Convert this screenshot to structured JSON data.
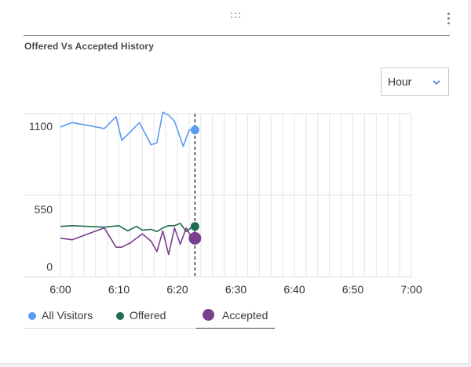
{
  "widget": {
    "title": "Offered Vs Accepted History",
    "drag_icon": "drag-grip-icon",
    "menu_icon": "more-vertical-icon"
  },
  "range_select": {
    "selected": "Hour",
    "icon": "chevron-down-icon",
    "accent": "#4a7fe0"
  },
  "legend": {
    "items": [
      {
        "label": "All Visitors",
        "color": "#5b9bf0"
      },
      {
        "label": "Offered",
        "color": "#1e6b4f"
      },
      {
        "label": "Accepted",
        "color": "#7b3f8f"
      }
    ],
    "active_index": 2
  },
  "chart_data": {
    "type": "line",
    "x_ticks": [
      "6:00",
      "6:10",
      "6:20",
      "6:30",
      "6:40",
      "6:50",
      "7:00"
    ],
    "y_ticks": [
      "1100",
      "550",
      "0"
    ],
    "xlim": [
      "6:00",
      "7:00"
    ],
    "ylim": [
      0,
      1100
    ],
    "grid": true,
    "current_time": "6:23",
    "series": [
      {
        "name": "All Visitors",
        "color": "#5b9bf0",
        "x": [
          "6:00",
          "6:02",
          "6:07.5",
          "6:09.5",
          "6:10.5",
          "6:11.5",
          "6:13.5",
          "6:15.5",
          "6:16.5",
          "6:17.5",
          "6:18.5",
          "6:19.5",
          "6:21",
          "6:22",
          "6:23"
        ],
        "values": [
          1010,
          1040,
          1000,
          1080,
          920,
          960,
          1040,
          890,
          905,
          1110,
          1090,
          1050,
          880,
          990,
          990
        ]
      },
      {
        "name": "Offered",
        "color": "#1e6b4f",
        "x": [
          "6:00",
          "6:02",
          "6:07.5",
          "6:10",
          "6:11.5",
          "6:13",
          "6:14",
          "6:15.5",
          "6:16.5",
          "6:17.5",
          "6:18.5",
          "6:19.5",
          "6:20.5",
          "6:21.5",
          "6:22.5",
          "6:23"
        ],
        "values": [
          340,
          345,
          335,
          345,
          310,
          340,
          315,
          320,
          305,
          330,
          345,
          345,
          360,
          305,
          335,
          340
        ]
      },
      {
        "name": "Accepted",
        "color": "#7b3f8f",
        "x": [
          "6:00",
          "6:02",
          "6:07.5",
          "6:09.5",
          "6:10.5",
          "6:12",
          "6:14",
          "6:15.5",
          "6:16.5",
          "6:17.5",
          "6:18.5",
          "6:19.5",
          "6:20.5",
          "6:21.5",
          "6:22.5",
          "6:23"
        ],
        "values": [
          260,
          250,
          330,
          200,
          200,
          230,
          290,
          240,
          170,
          310,
          150,
          330,
          220,
          330,
          260,
          260
        ]
      }
    ]
  }
}
